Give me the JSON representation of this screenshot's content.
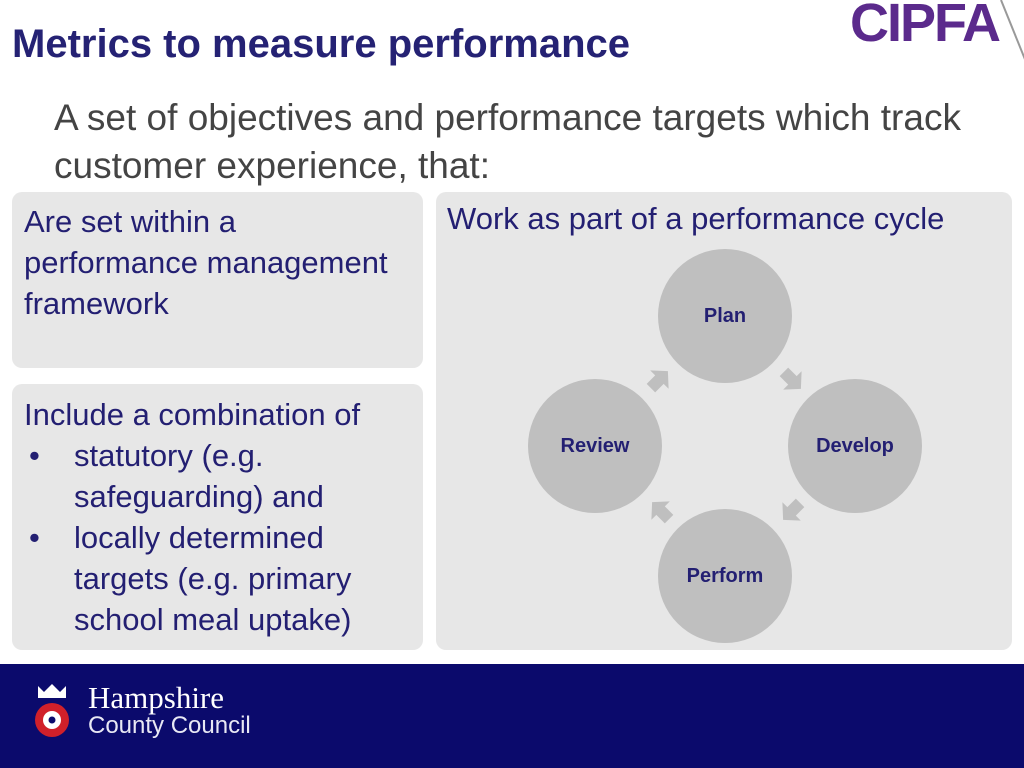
{
  "title": "Metrics to measure performance",
  "logo": {
    "text": "CIPFA",
    "color": "#5b2a8c"
  },
  "intro": "A set of objectives and performance targets which track customer experience, that:",
  "box_framework": "Are set within a performance management framework",
  "box_combination": {
    "lead": "Include a combination of",
    "items": [
      "statutory (e.g. safeguarding) and",
      "locally determined targets (e.g. primary school meal uptake)"
    ]
  },
  "cycle": {
    "heading": "Work as part of a performance cycle",
    "stages": [
      "Plan",
      "Develop",
      "Perform",
      "Review"
    ]
  },
  "footer": {
    "org_line1": "Hampshire",
    "org_line2": "County Council",
    "color": "#0b0a6c"
  }
}
